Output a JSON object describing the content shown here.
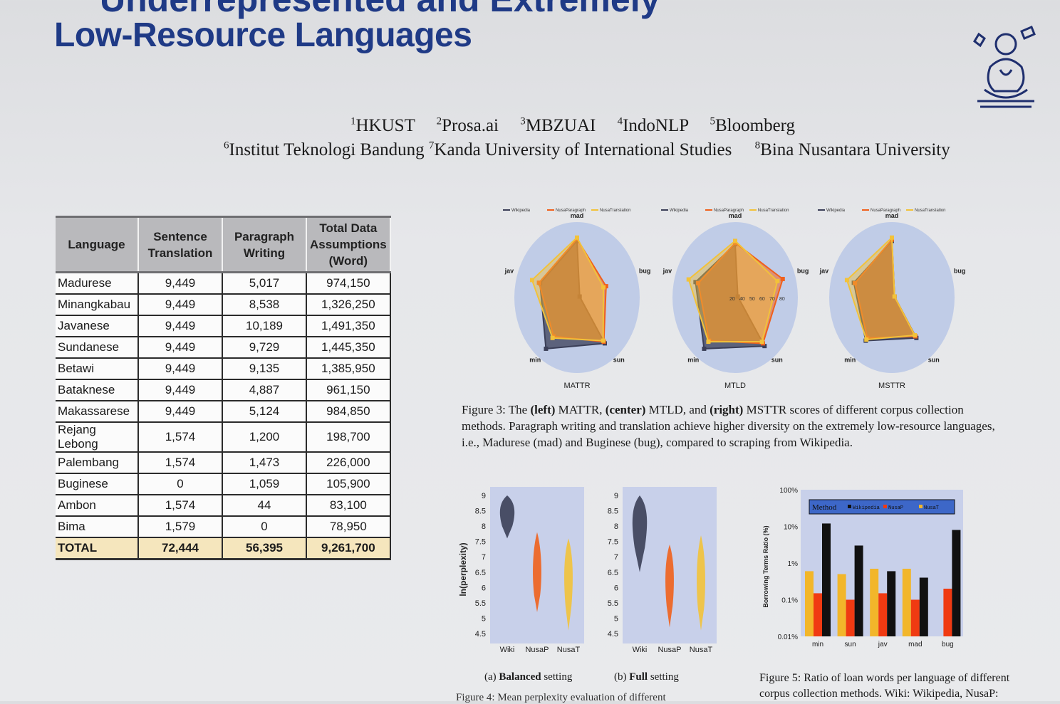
{
  "header": {
    "title_partial": "Underrepresented and Extremely",
    "title": "Low-Resource Languages",
    "affiliations_line1": [
      {
        "num": "1",
        "name": "HKUST"
      },
      {
        "num": "2",
        "name": "Prosa.ai"
      },
      {
        "num": "3",
        "name": "MBZUAI"
      },
      {
        "num": "4",
        "name": "IndoNLP"
      },
      {
        "num": "5",
        "name": "Bloomberg"
      }
    ],
    "affiliations_line2": [
      {
        "num": "6",
        "name": "Institut Teknologi Bandung"
      },
      {
        "num": "7",
        "name": "Kanda University of International Studies"
      },
      {
        "num": "8",
        "name": "Bina Nusantara University"
      }
    ]
  },
  "table": {
    "headers": [
      "Language",
      "Sentence Translation",
      "Paragraph Writing",
      "Total Data Assumptions (Word)"
    ],
    "rows": [
      [
        "Madurese",
        "9,449",
        "5,017",
        "974,150"
      ],
      [
        "Minangkabau",
        "9,449",
        "8,538",
        "1,326,250"
      ],
      [
        "Javanese",
        "9,449",
        "10,189",
        "1,491,350"
      ],
      [
        "Sundanese",
        "9,449",
        "9,729",
        "1,445,350"
      ],
      [
        "Betawi",
        "9,449",
        "9,135",
        "1,385,950"
      ],
      [
        "Bataknese",
        "9,449",
        "4,887",
        "961,150"
      ],
      [
        "Makassarese",
        "9,449",
        "5,124",
        "984,850"
      ],
      [
        "Rejang Lebong",
        "1,574",
        "1,200",
        "198,700"
      ],
      [
        "Palembang",
        "1,574",
        "1,473",
        "226,000"
      ],
      [
        "Buginese",
        "0",
        "1,059",
        "105,900"
      ],
      [
        "Ambon",
        "1,574",
        "44",
        "83,100"
      ],
      [
        "Bima",
        "1,579",
        "0",
        "78,950"
      ]
    ],
    "total": [
      "TOTAL",
      "72,444",
      "56,395",
      "9,261,700"
    ]
  },
  "figure3": {
    "legend": [
      "Wikipedia",
      "NusaParagraph",
      "NusaTranslation"
    ],
    "axes": [
      "mad",
      "bug",
      "sun",
      "min",
      "jav"
    ],
    "panels": [
      "MATTR",
      "MTLD",
      "MSTTR"
    ],
    "caption_label": "Figure 3:",
    "caption_parts": [
      {
        "t": " The ",
        "b": false
      },
      {
        "t": "(left)",
        "b": true
      },
      {
        "t": " MATTR, ",
        "b": false
      },
      {
        "t": "(center)",
        "b": true
      },
      {
        "t": " MTLD, and ",
        "b": false
      },
      {
        "t": "(right)",
        "b": true
      },
      {
        "t": " MSTTR scores of different corpus collection methods. Paragraph writing and translation achieve higher diversity on the extremely low-resource languages, i.e., Madurese (mad) and Buginese (bug), compared to scraping from Wikipedia.",
        "b": false
      }
    ],
    "colors": {
      "wiki": "#3b3f58",
      "para": "#f0601c",
      "trans": "#f2c23a",
      "disc": "#b9c7e6"
    }
  },
  "chart_data": [
    {
      "type": "radar",
      "title": "MATTR",
      "axes": [
        "mad",
        "bug",
        "sun",
        "min",
        "jav"
      ],
      "series": [
        {
          "name": "Wikipedia",
          "values": [
            0.85,
            0.05,
            0.85,
            0.95,
            0.7
          ]
        },
        {
          "name": "NusaParagraph",
          "values": [
            0.88,
            0.55,
            0.82,
            0.72,
            0.72
          ]
        },
        {
          "name": "NusaTranslation",
          "values": [
            0.9,
            0.5,
            0.8,
            0.75,
            0.85
          ]
        }
      ]
    },
    {
      "type": "radar",
      "title": "MTLD",
      "axes": [
        "mad",
        "bug",
        "sun",
        "min",
        "jav"
      ],
      "series": [
        {
          "name": "Wikipedia",
          "values": [
            0.8,
            0.05,
            0.9,
            0.95,
            0.75
          ]
        },
        {
          "name": "NusaParagraph",
          "values": [
            0.82,
            0.9,
            0.85,
            0.8,
            0.7
          ]
        },
        {
          "name": "NusaTranslation",
          "values": [
            0.85,
            0.8,
            0.82,
            0.82,
            0.88
          ]
        }
      ],
      "tick_labels": [
        "20",
        "40",
        "50",
        "60",
        "70",
        "80"
      ]
    },
    {
      "type": "radar",
      "title": "MSTTR",
      "axes": [
        "mad",
        "bug",
        "sun",
        "min",
        "jav"
      ],
      "series": [
        {
          "name": "Wikipedia",
          "values": [
            0.85,
            0.05,
            0.75,
            0.8,
            0.72
          ]
        },
        {
          "name": "NusaParagraph",
          "values": [
            0.87,
            0.05,
            0.72,
            0.75,
            0.7
          ]
        },
        {
          "name": "NusaTranslation",
          "values": [
            0.9,
            0.05,
            0.7,
            0.78,
            0.85
          ]
        }
      ]
    },
    {
      "type": "violin",
      "subcaption_label": "(a)",
      "subcaption_bold": "Balanced",
      "subcaption_rest": "setting",
      "ylabel": "ln(perplexity)",
      "yticks": [
        4.5,
        5,
        5.5,
        6,
        6.5,
        7,
        7.5,
        8,
        8.5,
        9
      ],
      "categories": [
        "Wiki",
        "NusaP",
        "NusaT"
      ],
      "series": [
        {
          "name": "Wiki",
          "min": 7.6,
          "max": 9.0,
          "median": 8.4
        },
        {
          "name": "NusaP",
          "min": 5.2,
          "max": 7.8,
          "median": 6.3
        },
        {
          "name": "NusaT",
          "min": 4.6,
          "max": 7.6,
          "median": 6.2
        }
      ]
    },
    {
      "type": "violin",
      "subcaption_label": "(b)",
      "subcaption_bold": "Full",
      "subcaption_rest": "setting",
      "yticks": [
        4.5,
        5,
        5.5,
        6,
        6.5,
        7,
        7.5,
        8,
        8.5,
        9
      ],
      "categories": [
        "Wiki",
        "NusaP",
        "NusaT"
      ],
      "series": [
        {
          "name": "Wiki",
          "min": 6.5,
          "max": 9.0,
          "median": 8.1
        },
        {
          "name": "NusaP",
          "min": 4.7,
          "max": 7.4,
          "median": 6.1
        },
        {
          "name": "NusaT",
          "min": 4.6,
          "max": 7.7,
          "median": 6.0
        }
      ]
    },
    {
      "type": "bar",
      "ylabel": "Borrowing Terms Ratio (%)",
      "yscale": "log",
      "yticks": [
        "0.01%",
        "0.1%",
        "1%",
        "10%",
        "100%"
      ],
      "legend_title": "Method",
      "legend": [
        "Wikipedia",
        "NusaP",
        "NusaT"
      ],
      "categories": [
        "min",
        "sun",
        "jav",
        "mad",
        "bug"
      ],
      "series": [
        {
          "name": "NusaT",
          "values": [
            0.6,
            0.5,
            0.7,
            0.7,
            null
          ]
        },
        {
          "name": "NusaP",
          "values": [
            0.15,
            0.1,
            0.15,
            0.1,
            0.2
          ]
        },
        {
          "name": "Wikipedia",
          "values": [
            12,
            3,
            0.6,
            0.4,
            8
          ]
        }
      ]
    }
  ],
  "figure4": {
    "caption_visible": "Figure 4: Mean perplexity evaluation of different"
  },
  "figure5": {
    "caption_line1": "Figure 5: Ratio of loan words per language of different",
    "caption_line2": "corpus collection methods.  Wiki: Wikipedia, NusaP:"
  }
}
